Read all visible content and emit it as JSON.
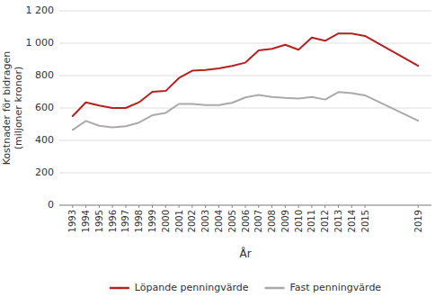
{
  "chart_data": {
    "type": "line",
    "xlabel": "År",
    "ylabel": "Kostnader för bidragen\n(miljoner kronor)",
    "x": [
      1993,
      1994,
      1995,
      1996,
      1997,
      1998,
      1999,
      2000,
      2001,
      2002,
      2003,
      2004,
      2005,
      2006,
      2007,
      2008,
      2009,
      2010,
      2011,
      2012,
      2013,
      2014,
      2015,
      2019
    ],
    "series": [
      {
        "name": "Löpande penningvärde",
        "color": "#b52020",
        "values": [
          550,
          635,
          615,
          600,
          600,
          635,
          700,
          705,
          785,
          830,
          835,
          845,
          860,
          880,
          955,
          965,
          990,
          960,
          1035,
          1015,
          1060,
          1060,
          1045,
          860
        ]
      },
      {
        "name": "Fast penningvärde",
        "color": "#aaaaaa",
        "values": [
          465,
          520,
          490,
          480,
          488,
          510,
          555,
          570,
          625,
          625,
          618,
          618,
          632,
          665,
          680,
          668,
          662,
          658,
          668,
          652,
          698,
          692,
          678,
          522
        ]
      }
    ],
    "xlim": [
      1992,
      2020
    ],
    "xticks": [
      1993,
      1994,
      1995,
      1996,
      1997,
      1998,
      1999,
      2000,
      2001,
      2002,
      2003,
      2004,
      2005,
      2006,
      2007,
      2008,
      2009,
      2010,
      2011,
      2012,
      2013,
      2014,
      2015,
      2019
    ],
    "ylim": [
      0,
      1200
    ],
    "yticks": [
      0,
      200,
      400,
      600,
      800,
      {
        "value": 1000,
        "label": "1 000"
      },
      {
        "value": 1200,
        "label": "1 200"
      }
    ],
    "grid": true,
    "legend": "bottom"
  }
}
